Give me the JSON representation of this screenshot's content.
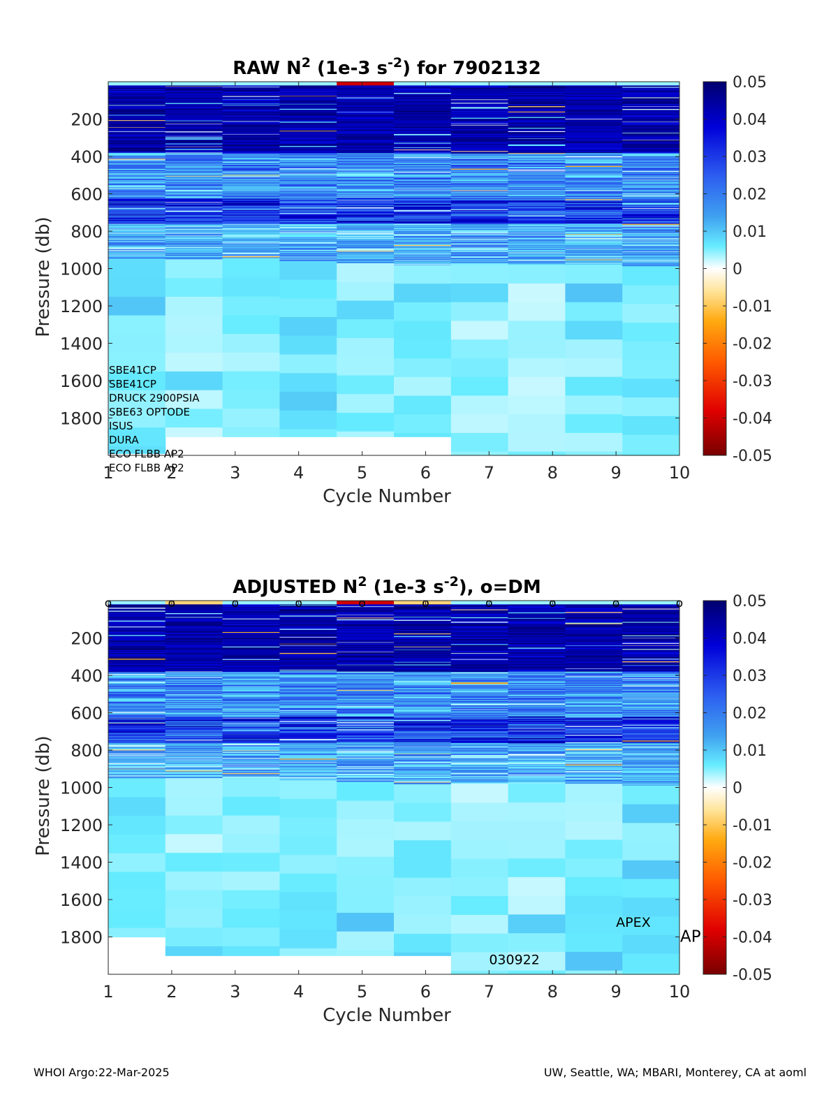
{
  "chart_data": [
    {
      "type": "heatmap",
      "title": "RAW N2 (1e-3 s-2) for 7902132",
      "title_parts": {
        "pre": "RAW N",
        "sup1": "2",
        "mid": " (1e-3 s",
        "sup2": "-2",
        "post": ") for 7902132"
      },
      "xlabel": "Cycle Number",
      "ylabel": "Pressure (db)",
      "x_ticks": [
        "1",
        "2",
        "3",
        "4",
        "5",
        "6",
        "7",
        "8",
        "9",
        "10"
      ],
      "y_ticks": [
        "200",
        "400",
        "600",
        "800",
        "1000",
        "1200",
        "1400",
        "1600",
        "1800"
      ],
      "xlim": [
        1,
        10
      ],
      "ylim": [
        2000,
        0
      ],
      "y_reversed": true,
      "colorbar": {
        "ticks": [
          "0.05",
          "0.04",
          "0.03",
          "0.02",
          "0.01",
          "0",
          "-0.01",
          "-0.02",
          "-0.03",
          "-0.04",
          "-0.05"
        ],
        "range": [
          -0.05,
          0.05
        ],
        "colormap": "jet-white-center"
      },
      "cycles": [
        1,
        2,
        3,
        4,
        5,
        6,
        7,
        8,
        9,
        10
      ],
      "max_pressure": [
        1990,
        1900,
        1900,
        1900,
        1900,
        1900,
        2000,
        2000,
        2000,
        2000
      ],
      "upper_intense_to": [
        950,
        950,
        950,
        960,
        970,
        980,
        980,
        980,
        980,
        990
      ],
      "deep_value": [
        0.006,
        0.004,
        0.005,
        0.006,
        0.005,
        0.005,
        0.004,
        0.004,
        0.005,
        0.006
      ],
      "dm_marks": false,
      "sensor_labels": [
        "SBE41CP",
        "SBE41CP",
        "DRUCK 2900PSIA",
        "SBE63 OPTODE",
        "ISUS",
        "DURA",
        "ECO FLBB AP2",
        "ECO FLBB AP2"
      ],
      "annotations": []
    },
    {
      "type": "heatmap",
      "title": "ADJUSTED N2 (1e-3 s-2), o=DM",
      "title_parts": {
        "pre": "ADJUSTED N",
        "sup1": "2",
        "mid": " (1e-3 s",
        "sup2": "-2",
        "post": "), o=DM"
      },
      "xlabel": "Cycle Number",
      "ylabel": "Pressure (db)",
      "x_ticks": [
        "1",
        "2",
        "3",
        "4",
        "5",
        "6",
        "7",
        "8",
        "9",
        "10"
      ],
      "y_ticks": [
        "200",
        "400",
        "600",
        "800",
        "1000",
        "1200",
        "1400",
        "1600",
        "1800"
      ],
      "xlim": [
        1,
        10
      ],
      "ylim": [
        2000,
        0
      ],
      "y_reversed": true,
      "colorbar": {
        "ticks": [
          "0.05",
          "0.04",
          "0.03",
          "0.02",
          "0.01",
          "0",
          "-0.01",
          "-0.02",
          "-0.03",
          "-0.04",
          "-0.05"
        ],
        "range": [
          -0.05,
          0.05
        ],
        "colormap": "jet-white-center"
      },
      "cycles": [
        1,
        2,
        3,
        4,
        5,
        6,
        7,
        8,
        9,
        10
      ],
      "max_pressure": [
        1800,
        1900,
        1900,
        1900,
        1900,
        1900,
        2000,
        2000,
        2000,
        2000
      ],
      "upper_intense_to": [
        950,
        950,
        950,
        960,
        970,
        980,
        980,
        980,
        980,
        990
      ],
      "deep_value": [
        0.006,
        0.004,
        0.005,
        0.006,
        0.005,
        0.005,
        0.004,
        0.004,
        0.005,
        0.006
      ],
      "dm_marks": true,
      "dm_marker": "o",
      "sensor_labels": [],
      "annotations": [
        {
          "text": "APEX",
          "x": 9.0,
          "y": 1720
        },
        {
          "text": "AP",
          "x": 10.0,
          "y": 1800
        },
        {
          "text": "030922",
          "x": 7.0,
          "y": 1920
        }
      ]
    }
  ],
  "footer": {
    "left": "WHOI Argo:22-Mar-2025",
    "right": "UW, Seattle, WA; MBARI, Monterey, CA at aoml"
  }
}
